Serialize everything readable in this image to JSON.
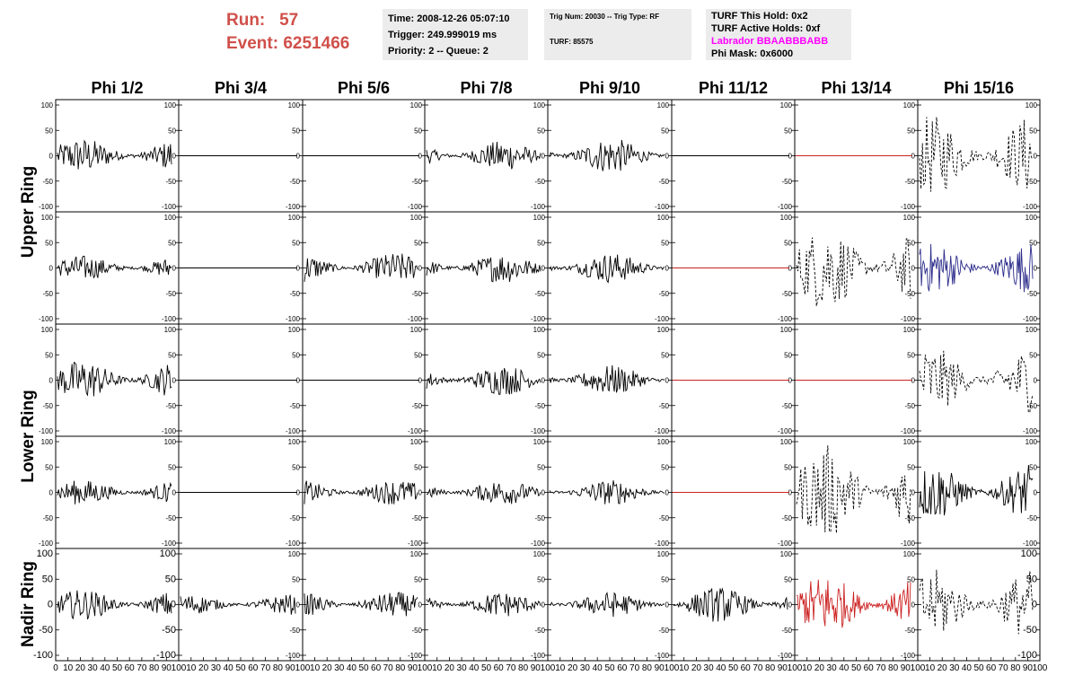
{
  "header": {
    "run_label": "Run:",
    "run_value": "57",
    "event_label": "Event:",
    "event_value": "6251466",
    "time_line": "Time: 2008-12-26 05:07:10",
    "trigger_line": "Trigger: 249.999019 ms",
    "priority_line": "Priority: 2 -- Queue: 2",
    "trig_num_line": "Trig Num: 20030 -- Trig Type: RF",
    "turf_line": "TURF: 85575",
    "turf_this_hold": "TURF This Hold: 0x2",
    "turf_active_holds": "TURF Active Holds: 0xf",
    "labrador": "Labrador BBAABBBABB",
    "phi_mask": "Phi Mask: 0x6000"
  },
  "columns": [
    "Phi 1/2",
    "Phi 3/4",
    "Phi 5/6",
    "Phi 7/8",
    "Phi 9/10",
    "Phi 11/12",
    "Phi 13/14",
    "Phi 15/16"
  ],
  "row_groups": [
    "Upper Ring",
    "Lower Ring",
    "Nadir Ring"
  ],
  "y_ticks": [
    "100",
    "50",
    "0",
    "-50",
    "-100"
  ],
  "x_tick_labels": [
    "0",
    "10",
    "20",
    "30",
    "40",
    "50",
    "60",
    "70",
    "80",
    "90",
    "100"
  ],
  "colors": {
    "run_text": "#d0504a",
    "black": "#000000",
    "red": "#cc2222",
    "blue": "#2a2a8a",
    "magenta": "#ff00ff",
    "info_bg": "#ececec"
  },
  "chart_data": {
    "type": "line",
    "xlim": [
      0,
      100
    ],
    "ylim": [
      -100,
      100
    ],
    "panels": [
      [
        {
          "style": "solid",
          "color": "black",
          "amp": 35,
          "n": 55
        },
        {
          "style": "flat",
          "color": "black"
        },
        {
          "style": "flat",
          "color": "black"
        },
        {
          "style": "solid",
          "color": "black",
          "amp": 30,
          "n": 55
        },
        {
          "style": "solid",
          "color": "black",
          "amp": 35,
          "n": 55
        },
        {
          "style": "flat",
          "color": "black"
        },
        {
          "style": "flat",
          "color": "red"
        },
        {
          "style": "dashed",
          "color": "black",
          "amp": 80,
          "n": 40
        }
      ],
      [
        {
          "style": "solid",
          "color": "black",
          "amp": 25,
          "n": 55
        },
        {
          "style": "flat",
          "color": "black"
        },
        {
          "style": "solid",
          "color": "black",
          "amp": 30,
          "n": 55
        },
        {
          "style": "solid",
          "color": "black",
          "amp": 30,
          "n": 55
        },
        {
          "style": "solid",
          "color": "black",
          "amp": 30,
          "n": 55
        },
        {
          "style": "flat",
          "color": "red"
        },
        {
          "style": "dashed",
          "color": "black",
          "amp": 85,
          "n": 40
        },
        {
          "style": "solid",
          "color": "blue",
          "amp": 50,
          "n": 60
        }
      ],
      [
        {
          "style": "solid",
          "color": "black",
          "amp": 40,
          "n": 55
        },
        {
          "style": "flat",
          "color": "black"
        },
        {
          "style": "flat",
          "color": "black"
        },
        {
          "style": "solid",
          "color": "black",
          "amp": 30,
          "n": 55
        },
        {
          "style": "solid",
          "color": "black",
          "amp": 30,
          "n": 55
        },
        {
          "style": "flat",
          "color": "red"
        },
        {
          "style": "flat",
          "color": "red"
        },
        {
          "style": "dashed",
          "color": "black",
          "amp": 65,
          "n": 40
        }
      ],
      [
        {
          "style": "solid",
          "color": "black",
          "amp": 25,
          "n": 55
        },
        {
          "style": "flat",
          "color": "black"
        },
        {
          "style": "solid",
          "color": "black",
          "amp": 25,
          "n": 55
        },
        {
          "style": "solid",
          "color": "black",
          "amp": 25,
          "n": 55
        },
        {
          "style": "solid",
          "color": "black",
          "amp": 25,
          "n": 55
        },
        {
          "style": "flat",
          "color": "red"
        },
        {
          "style": "dashed",
          "color": "black",
          "amp": 95,
          "n": 40
        },
        {
          "style": "solid",
          "color": "black",
          "amp": 55,
          "n": 55
        }
      ],
      [
        {
          "style": "solid",
          "color": "black",
          "amp": 30,
          "n": 55
        },
        {
          "style": "solid",
          "color": "black",
          "amp": 20,
          "n": 55
        },
        {
          "style": "solid",
          "color": "black",
          "amp": 25,
          "n": 55
        },
        {
          "style": "solid",
          "color": "black",
          "amp": 25,
          "n": 55
        },
        {
          "style": "solid",
          "color": "black",
          "amp": 25,
          "n": 55
        },
        {
          "style": "solid",
          "color": "black",
          "amp": 35,
          "n": 55
        },
        {
          "style": "solid",
          "color": "red",
          "amp": 60,
          "n": 60
        },
        {
          "style": "dashed",
          "color": "black",
          "amp": 70,
          "n": 40
        }
      ]
    ]
  }
}
